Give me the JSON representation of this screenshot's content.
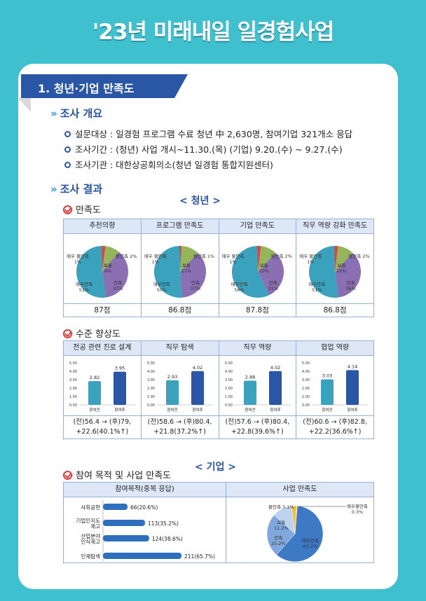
{
  "title": "'23년 미래내일 일경험사업",
  "section": "1. 청년·기업 만족도",
  "overview": {
    "heading": "조사 개요",
    "items": [
      "설문대상 : 일경험 프로그램 수료 청년 中 2,630명, 참여기업 321개소 응답",
      "조사기간 : (청년) 사업 개시~11.30.(목)   (기업) 9.20.(수) ~ 9.27.(수)",
      "조사기관 : 대한상공회의소(청년 일경험 통합지원센터)"
    ]
  },
  "results": {
    "heading": "조사 결과",
    "youth_tag": "< 청년 >",
    "company_tag": "< 기업 >",
    "satisfaction_heading": "만족도",
    "improvement_heading": "수준 향상도",
    "purpose_heading": "참여 목적 및 사업 만족도"
  },
  "satisfaction_table": {
    "columns": [
      {
        "header": "추천의향",
        "score": "87점",
        "labels": {
          "very_dis": "매우 불만족\n1%",
          "dis": "불만족 2%",
          "neutral": "보통\n9%",
          "sat": "만족\n37%",
          "very_sat": "매우만족\n51%"
        }
      },
      {
        "header": "프로그램 만족도",
        "score": "86.8점",
        "labels": {
          "very_dis": "매우 불만족\n1%",
          "dis": "불만족 1%",
          "neutral": "보통\n11%",
          "sat": "만족\n37%",
          "very_sat": "매우만족\n50%"
        }
      },
      {
        "header": "기업 만족도",
        "score": "87.8점",
        "labels": {
          "very_dis": "매우 불만족\n1%",
          "dis": "불만족 2%",
          "neutral": "보통\n10%",
          "sat": "만족\n31%",
          "very_sat": "매우만족\n56%"
        }
      },
      {
        "header": "직무 역량 강화 만족도",
        "score": "86.8점",
        "labels": {
          "very_dis": "매우 불만족\n1%",
          "dis": "불만족 2%",
          "neutral": "보통\n10%",
          "sat": "만족\n36%",
          "very_sat": "매우만족\n51%"
        }
      }
    ]
  },
  "improvement_table": {
    "columns": [
      {
        "header": "전공 관련 진로 설계",
        "note1": "(전)56.4 → (후)79,",
        "note2": "+22.6(40.1%↑)"
      },
      {
        "header": "직무 탐색",
        "note1": "(전)58.6 → (후)80.4,",
        "note2": "+21.8(37.2%↑)"
      },
      {
        "header": "직무 역량",
        "note1": "(전)57.6 → (후)80.4,",
        "note2": "+22.8(39.6%↑)"
      },
      {
        "header": "협업 역량",
        "note1": "(전)60.6 → (후)82.8,",
        "note2": "+22.2(36.6%↑)"
      }
    ]
  },
  "company_table": {
    "left_header": "참여목적(중복 응답)",
    "right_header": "사업 만족도"
  },
  "chart_data": [
    {
      "type": "pie",
      "title": "추천의향",
      "categories": [
        "매우 불만족",
        "불만족",
        "보통",
        "만족",
        "매우만족"
      ],
      "values": [
        1,
        2,
        9,
        37,
        51
      ]
    },
    {
      "type": "pie",
      "title": "프로그램 만족도",
      "categories": [
        "매우 불만족",
        "불만족",
        "보통",
        "만족",
        "매우만족"
      ],
      "values": [
        1,
        1,
        11,
        37,
        50
      ]
    },
    {
      "type": "pie",
      "title": "기업 만족도",
      "categories": [
        "매우 불만족",
        "불만족",
        "보통",
        "만족",
        "매우만족"
      ],
      "values": [
        1,
        2,
        10,
        31,
        56
      ]
    },
    {
      "type": "pie",
      "title": "직무 역량 강화 만족도",
      "categories": [
        "매우 불만족",
        "불만족",
        "보통",
        "만족",
        "매우만족"
      ],
      "values": [
        1,
        2,
        10,
        36,
        51
      ]
    },
    {
      "type": "bar",
      "title": "전공 관련 진로 설계",
      "categories": [
        "참여전",
        "참여후"
      ],
      "values": [
        2.82,
        3.95
      ],
      "ylim": [
        0,
        5
      ],
      "yticks": [
        "5.00",
        "4.00",
        "3.00",
        "2.00",
        "1.00",
        "0.00"
      ]
    },
    {
      "type": "bar",
      "title": "직무 탐색",
      "categories": [
        "참여전",
        "참여후"
      ],
      "values": [
        2.93,
        4.02
      ],
      "ylim": [
        0,
        5
      ],
      "yticks": [
        "5.00",
        "4.00",
        "3.00",
        "2.00",
        "1.00",
        "0.00"
      ]
    },
    {
      "type": "bar",
      "title": "직무 역량",
      "categories": [
        "참여전",
        "참여후"
      ],
      "values": [
        2.88,
        4.02
      ],
      "ylim": [
        0,
        5
      ],
      "yticks": [
        "5.00",
        "4.00",
        "3.00",
        "2.00",
        "1.00",
        "0.00"
      ]
    },
    {
      "type": "bar",
      "title": "협업 역량",
      "categories": [
        "참여전",
        "참여후"
      ],
      "values": [
        3.03,
        4.14
      ],
      "ylim": [
        0,
        5
      ],
      "yticks": [
        "5.00",
        "4.00",
        "3.00",
        "2.00",
        "1.00",
        "0.00"
      ]
    },
    {
      "type": "bar",
      "orientation": "horizontal",
      "title": "참여목적(중복 응답)",
      "categories": [
        "사회공헌",
        "기업인지도 제고",
        "산업분야 인식제고",
        "인재탐색"
      ],
      "values": [
        66,
        113,
        124,
        211
      ],
      "labels": [
        "66(20.6%)",
        "113(35.2%)",
        "124(38.6%)",
        "211(65.7%)"
      ]
    },
    {
      "type": "pie",
      "title": "사업 만족도",
      "categories": [
        "매우만족",
        "만족",
        "보통",
        "불만족",
        "매우불만족"
      ],
      "values": [
        60.2,
        25.2,
        11.2,
        3.1,
        0.3
      ],
      "labels": [
        "매우만족\n60.2%",
        "만족\n25.2%",
        "보통\n11.2%",
        "불만족 3.1%",
        "매우불만족\n0.3%"
      ]
    }
  ],
  "colors": {
    "background": "#3fc0cf",
    "banner": "#2a56a6",
    "very_sat": "#3aa2bc",
    "sat": "#8a6fb3",
    "neutral": "#95b55a",
    "dis": "#d24a3f",
    "very_dis": "#6c7d9a",
    "bar_before": "#3aa2bc",
    "bar_after": "#2a56a6"
  }
}
